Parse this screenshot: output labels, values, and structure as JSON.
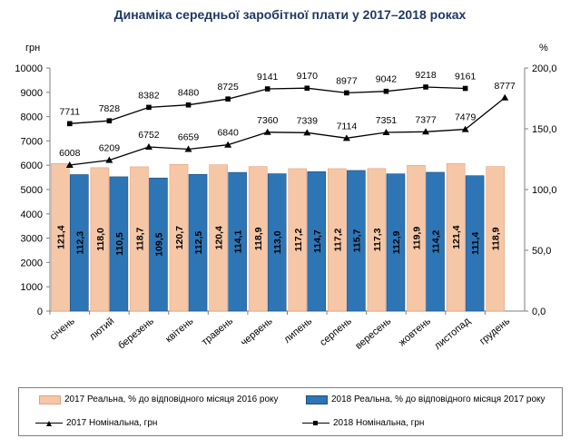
{
  "chart_data": {
    "type": "bar+line",
    "title": "Динаміка середньої заробітної плати у 2017–2018 роках",
    "left_axis_unit": "грн",
    "right_axis_unit": "%",
    "left_ylim": [
      0,
      10000
    ],
    "right_ylim": [
      0,
      200
    ],
    "left_ticks": [
      "0",
      "1000",
      "2000",
      "3000",
      "4000",
      "5000",
      "6000",
      "7000",
      "8000",
      "9000",
      "10000"
    ],
    "right_ticks": [
      "0,0",
      "50,0",
      "100,0",
      "150,0",
      "200,0"
    ],
    "categories": [
      "січень",
      "лютий",
      "березень",
      "квітень",
      "травень",
      "червень",
      "липень",
      "серпень",
      "вересень",
      "жовтень",
      "листопад",
      "грудень"
    ],
    "bar_series": [
      {
        "name": "2017 Реальна, % до відповідного місяця 2016 року",
        "values": [
          121.4,
          118.0,
          118.7,
          120.7,
          120.4,
          118.9,
          117.2,
          117.2,
          117.3,
          119.9,
          121.4,
          118.9
        ],
        "labels": [
          "121,4",
          "118,0",
          "118,7",
          "120,7",
          "120,4",
          "118,9",
          "117,2",
          "117,2",
          "117,3",
          "119,9",
          "121,4",
          "118,9"
        ],
        "color": "#f6c7a6"
      },
      {
        "name": "2018 Реальна, % до відповідного місяця 2017 року",
        "values": [
          112.3,
          110.5,
          109.5,
          112.5,
          114.1,
          113.0,
          114.7,
          115.7,
          112.9,
          114.2,
          111.4,
          null
        ],
        "labels": [
          "112,3",
          "110,5",
          "109,5",
          "112,5",
          "114,1",
          "113,0",
          "114,7",
          "115,7",
          "112,9",
          "114,2",
          "111,4",
          null
        ],
        "color": "#2e75b6"
      }
    ],
    "line_series": [
      {
        "name": "2017 Номінальна, грн",
        "marker": "triangle",
        "values": [
          6008,
          6209,
          6752,
          6659,
          6840,
          7360,
          7339,
          7114,
          7351,
          7377,
          7479,
          8777
        ],
        "labels": [
          "6008",
          "6209",
          "6752",
          "6659",
          "6840",
          "7360",
          "7339",
          "7114",
          "7351",
          "7377",
          "7479",
          "8777"
        ]
      },
      {
        "name": "2018 Номінальна, грн",
        "marker": "square",
        "values": [
          7711,
          7828,
          8382,
          8480,
          8725,
          9141,
          9170,
          8977,
          9042,
          9218,
          9161,
          null
        ],
        "labels": [
          "7711",
          "7828",
          "8382",
          "8480",
          "8725",
          "9141",
          "9170",
          "8977",
          "9042",
          "9218",
          "9161",
          null
        ]
      }
    ]
  }
}
